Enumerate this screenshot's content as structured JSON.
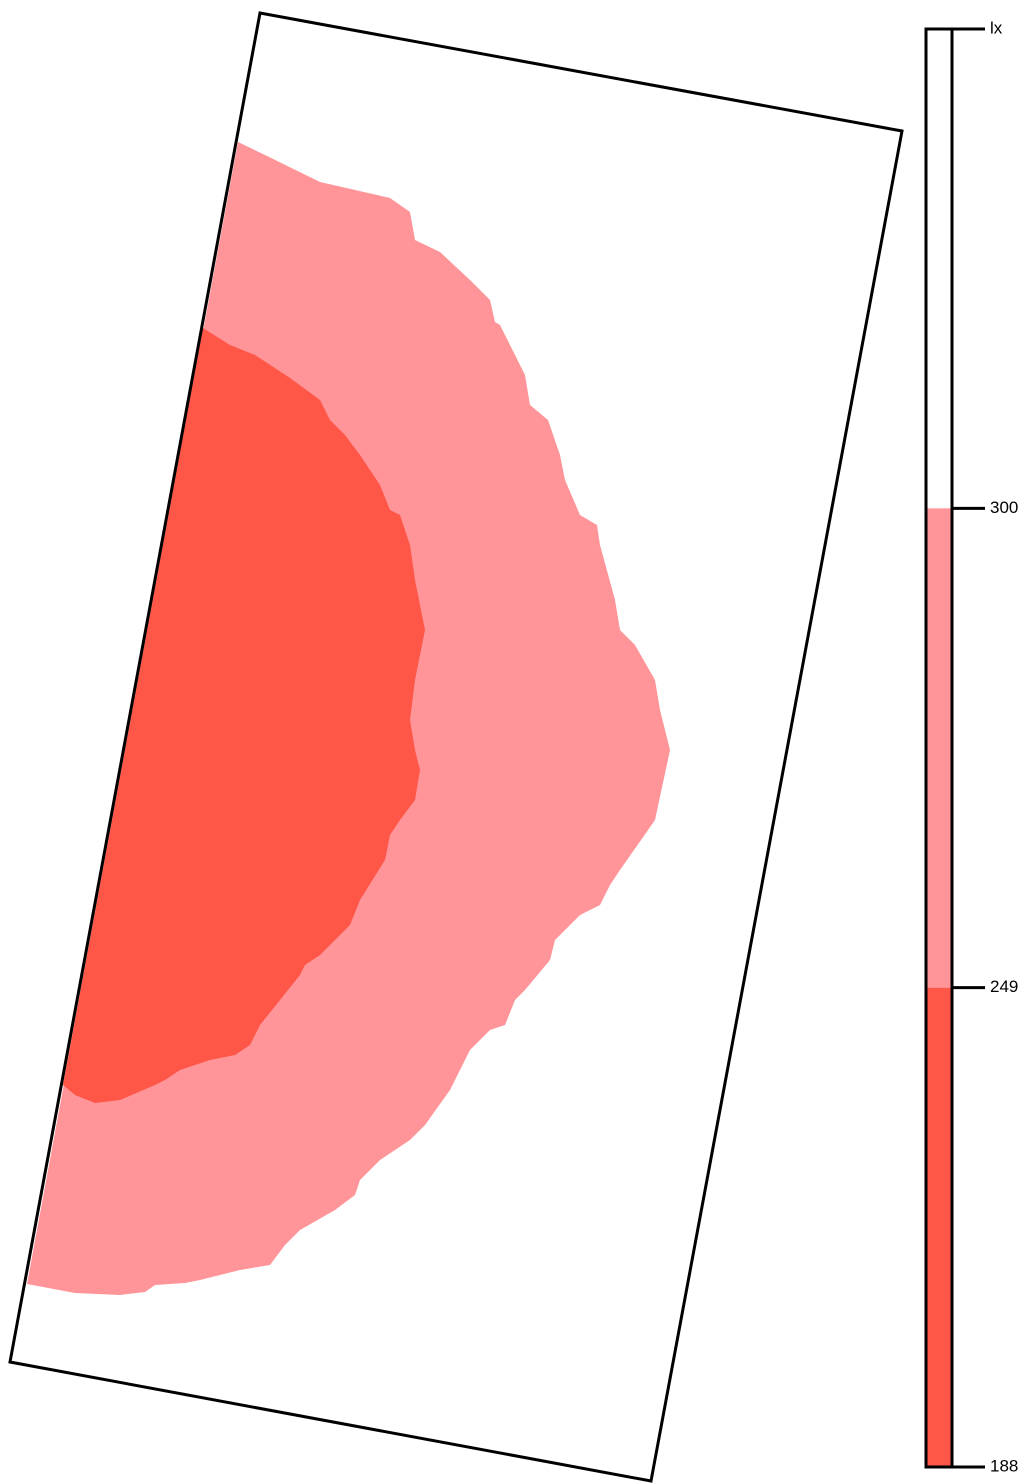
{
  "legend": {
    "unit": "lx",
    "ticks": [
      300,
      249,
      188
    ],
    "colors": [
      "#ffffff",
      "#ff9499",
      "#ff5747"
    ]
  }
}
